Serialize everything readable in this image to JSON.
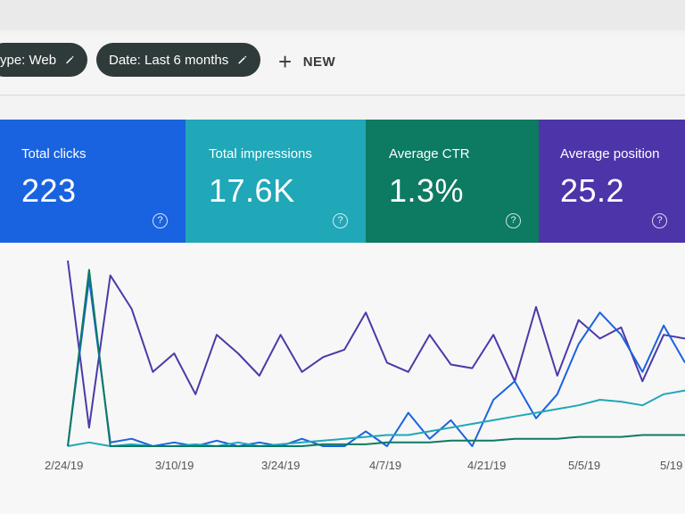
{
  "filters": {
    "type_chip": "ype: Web",
    "date_chip": "Date: Last 6 months",
    "new_label": "NEW"
  },
  "metrics": [
    {
      "label": "Total clicks",
      "value": "223",
      "color": "#1a63e0"
    },
    {
      "label": "Total impressions",
      "value": "17.6K",
      "color": "#20a7b8"
    },
    {
      "label": "Average CTR",
      "value": "1.3%",
      "color": "#0d7a62"
    },
    {
      "label": "Average position",
      "value": "25.2",
      "color": "#4d34a8"
    }
  ],
  "chart_data": {
    "type": "line",
    "x_tick_labels": [
      "2/24/19",
      "3/10/19",
      "3/24/19",
      "4/7/19",
      "4/21/19",
      "5/5/19",
      "5/19"
    ],
    "series": [
      {
        "color": "#4b3aa8",
        "values": [
          100,
          10,
          92,
          74,
          40,
          50,
          28,
          60,
          50,
          38,
          60,
          40,
          48,
          52,
          72,
          45,
          40,
          60,
          44,
          42,
          60,
          35,
          75,
          38,
          68,
          58,
          64,
          35,
          60,
          58
        ]
      },
      {
        "color": "#1a63e0",
        "values": [
          0,
          90,
          2,
          4,
          0,
          2,
          0,
          3,
          0,
          2,
          0,
          4,
          0,
          0,
          8,
          0,
          18,
          4,
          14,
          0,
          25,
          35,
          15,
          28,
          55,
          72,
          60,
          40,
          65,
          45
        ]
      },
      {
        "color": "#20a7b8",
        "values": [
          0,
          2,
          0,
          1,
          0,
          0,
          1,
          0,
          2,
          0,
          1,
          2,
          3,
          4,
          5,
          6,
          6,
          8,
          10,
          12,
          14,
          16,
          18,
          20,
          22,
          25,
          24,
          22,
          28,
          30
        ]
      },
      {
        "color": "#0d7a62",
        "values": [
          0,
          95,
          0,
          0,
          0,
          0,
          0,
          0,
          0,
          0,
          0,
          0,
          1,
          1,
          1,
          2,
          2,
          2,
          3,
          3,
          3,
          4,
          4,
          4,
          5,
          5,
          5,
          6,
          6,
          6
        ]
      }
    ]
  }
}
